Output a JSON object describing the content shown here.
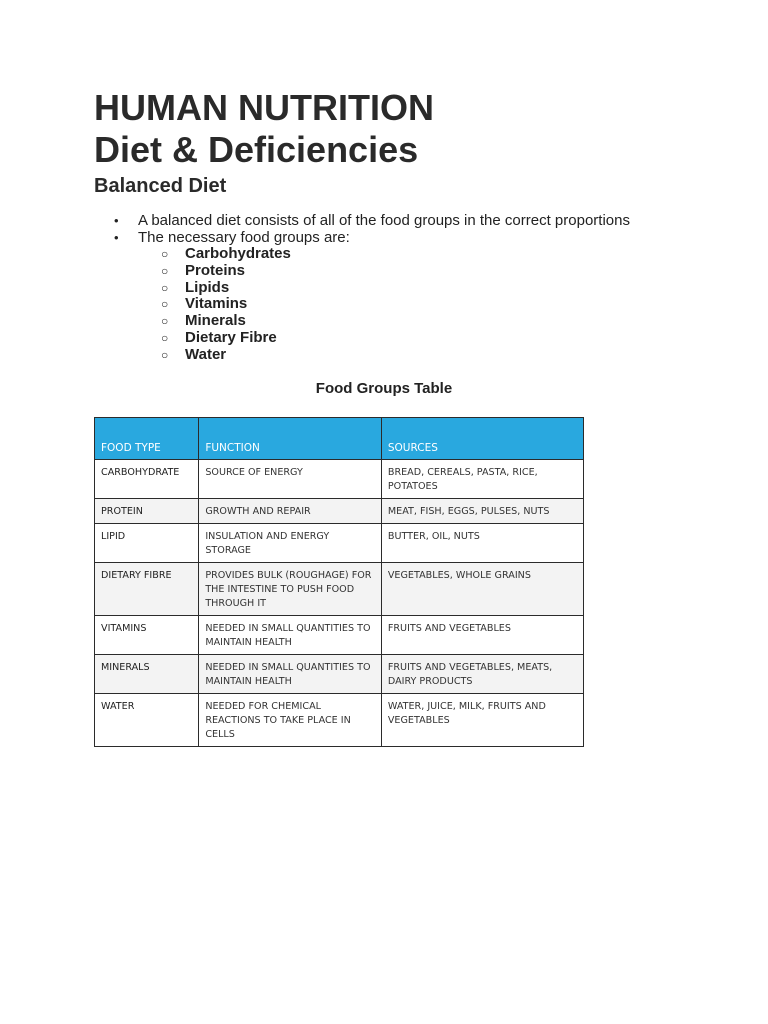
{
  "title": "HUMAN NUTRITION",
  "subtitle": "Diet & Deficiencies",
  "section": "Balanced Diet",
  "bullets": [
    "A balanced diet consists of all of the food groups in the correct proportions",
    "The necessary food groups are:"
  ],
  "food_groups": [
    "Carbohydrates",
    "Proteins",
    "Lipids",
    "Vitamins",
    "Minerals",
    "Dietary Fibre",
    "Water"
  ],
  "table": {
    "title": "Food Groups Table",
    "headers": [
      "FOOD TYPE",
      "FUNCTION",
      "SOURCES"
    ],
    "rows": [
      [
        "CARBOHYDRATE",
        "SOURCE OF ENERGY",
        "BREAD, CEREALS, PASTA, RICE, POTATOES"
      ],
      [
        "PROTEIN",
        "GROWTH AND REPAIR",
        "MEAT, FISH, EGGS, PULSES, NUTS"
      ],
      [
        "LIPID",
        "INSULATION AND ENERGY STORAGE",
        "BUTTER, OIL, NUTS"
      ],
      [
        "DIETARY FIBRE",
        "PROVIDES BULK (ROUGHAGE) FOR THE INTESTINE TO PUSH FOOD THROUGH IT",
        "VEGETABLES, WHOLE GRAINS"
      ],
      [
        "VITAMINS",
        "NEEDED IN SMALL QUANTITIES TO MAINTAIN HEALTH",
        "FRUITS AND VEGETABLES"
      ],
      [
        "MINERALS",
        "NEEDED IN SMALL QUANTITIES TO MAINTAIN HEALTH",
        "FRUITS AND VEGETABLES, MEATS, DAIRY PRODUCTS"
      ],
      [
        "WATER",
        "NEEDED FOR CHEMICAL REACTIONS TO TAKE PLACE IN CELLS",
        "WATER, JUICE, MILK, FRUITS AND VEGETABLES"
      ]
    ]
  },
  "colors": {
    "header_bg": "#29a8df",
    "border": "#2b2b2b"
  }
}
